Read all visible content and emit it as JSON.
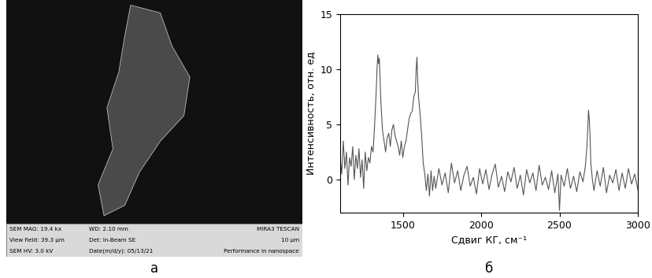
{
  "panel_labels": [
    "а",
    "б"
  ],
  "image_panel": {
    "info_bar": {
      "row1": [
        "SEM MAG: 19.4 kx",
        "WD: 2.10 mm",
        "MIRA3 TESCAN"
      ],
      "row2": [
        "View field: 39.3 μm",
        "Det: In-Beam SE",
        "10 μm"
      ],
      "row3": [
        "SEM HV: 3.0 kV",
        "Date(m/d/y): 05/13/21",
        "Performance in nanospace"
      ]
    }
  },
  "chart_data": {
    "type": "line",
    "x_label": "Сдвиг КГ, см⁻¹",
    "y_label": "Интенсивность, отн. ед",
    "color": "#555555",
    "xlim": [
      1100,
      3000
    ],
    "ylim": [
      -3,
      15
    ],
    "xticks": [
      1500,
      2000,
      2500,
      3000
    ],
    "yticks": [
      0,
      5,
      10,
      15
    ],
    "x": [
      1100,
      1110,
      1120,
      1130,
      1140,
      1150,
      1160,
      1170,
      1180,
      1190,
      1200,
      1210,
      1220,
      1230,
      1240,
      1250,
      1260,
      1270,
      1280,
      1290,
      1300,
      1310,
      1320,
      1330,
      1335,
      1340,
      1345,
      1350,
      1355,
      1360,
      1370,
      1380,
      1390,
      1400,
      1410,
      1420,
      1430,
      1440,
      1450,
      1460,
      1470,
      1480,
      1490,
      1500,
      1510,
      1520,
      1530,
      1540,
      1550,
      1560,
      1570,
      1580,
      1585,
      1590,
      1595,
      1600,
      1610,
      1620,
      1630,
      1640,
      1650,
      1660,
      1670,
      1680,
      1690,
      1700,
      1710,
      1730,
      1750,
      1770,
      1790,
      1810,
      1830,
      1850,
      1870,
      1890,
      1910,
      1930,
      1950,
      1970,
      1990,
      2010,
      2030,
      2050,
      2070,
      2090,
      2110,
      2130,
      2150,
      2170,
      2190,
      2210,
      2230,
      2250,
      2270,
      2290,
      2310,
      2330,
      2350,
      2370,
      2390,
      2410,
      2430,
      2450,
      2470,
      2490,
      2500,
      2510,
      2530,
      2550,
      2570,
      2590,
      2610,
      2630,
      2650,
      2665,
      2675,
      2680,
      2685,
      2690,
      2695,
      2700,
      2710,
      2720,
      2740,
      2760,
      2780,
      2800,
      2820,
      2840,
      2860,
      2880,
      2900,
      2920,
      2940,
      2960,
      2980,
      3000
    ],
    "values": [
      2,
      0.5,
      3.5,
      1,
      2.5,
      -0.5,
      2,
      1.2,
      3,
      0,
      2.2,
      1,
      2.8,
      0.2,
      1.8,
      -0.8,
      2.5,
      0.8,
      2,
      1.5,
      3,
      2.5,
      5,
      8,
      10,
      11.3,
      10.5,
      11,
      9,
      7,
      4.5,
      3.5,
      2.5,
      3.8,
      4.2,
      3,
      4.5,
      5,
      4,
      3.5,
      3,
      2.2,
      3.5,
      2,
      3,
      3.5,
      4.5,
      5.5,
      6,
      6.2,
      7.5,
      8,
      10,
      11.1,
      9,
      7.5,
      6,
      4,
      1.5,
      0.5,
      -1,
      0.5,
      -1.5,
      0.8,
      -1,
      0.3,
      -0.8,
      1,
      -0.5,
      0.6,
      -1.2,
      1.5,
      -0.3,
      0.8,
      -1,
      0.4,
      1.2,
      -0.6,
      0.2,
      -1.3,
      1,
      -0.4,
      0.9,
      -0.9,
      0.5,
      1.4,
      -0.7,
      0.3,
      -1.1,
      0.7,
      -0.2,
      1.1,
      -0.8,
      0.4,
      -1.4,
      0.9,
      -0.3,
      0.6,
      -1,
      1.3,
      -0.5,
      0.2,
      -0.9,
      0.8,
      -1.2,
      0.5,
      -2.8,
      0.4,
      -0.6,
      1,
      -0.8,
      0.3,
      -1.1,
      0.7,
      -0.2,
      1.2,
      3,
      4.5,
      6.3,
      5.5,
      4,
      1.5,
      0,
      -1,
      0.8,
      -0.6,
      1.1,
      -1.2,
      0.4,
      -0.3,
      0.9,
      -1,
      0.6,
      -0.8,
      1,
      -0.4,
      0.5,
      -0.9
    ]
  }
}
